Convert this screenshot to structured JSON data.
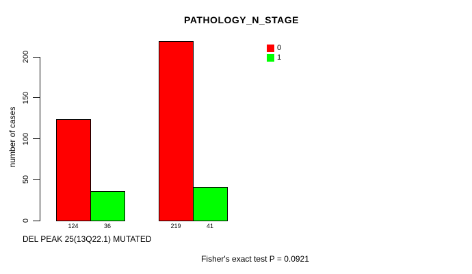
{
  "chart_data": {
    "type": "bar",
    "title": "PATHOLOGY_N_STAGE",
    "xlabel": "DEL PEAK 25(13Q22.1) MUTATED",
    "ylabel": "number of cases",
    "annotation": "Fisher's exact test P = 0.0921",
    "series": [
      {
        "name": "0",
        "color": "#ff0000",
        "values": [
          124,
          219
        ]
      },
      {
        "name": "1",
        "color": "#00ff00",
        "values": [
          36,
          41
        ]
      }
    ],
    "bar_value_labels": [
      "124",
      "36",
      "219",
      "41"
    ],
    "yticks": [
      0,
      50,
      100,
      150,
      200
    ],
    "ylim": [
      0,
      220
    ],
    "grid": false,
    "legend": {
      "position": "top-right",
      "entries": [
        {
          "label": "0",
          "color": "#ff0000"
        },
        {
          "label": "1",
          "color": "#00ff00"
        }
      ]
    },
    "colors": {
      "background": "#ffffff",
      "axis": "#000000",
      "text": "#000000"
    }
  }
}
